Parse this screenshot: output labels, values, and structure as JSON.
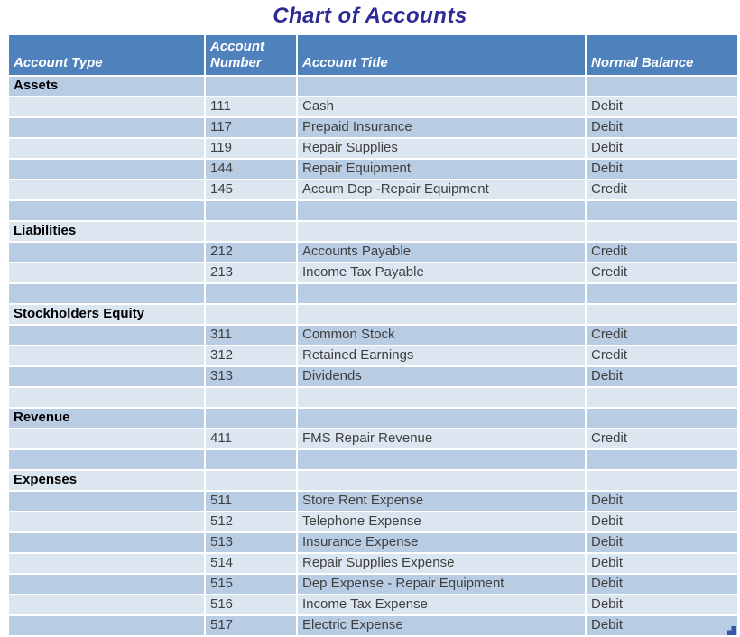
{
  "page": {
    "title": "Chart of Accounts"
  },
  "colors": {
    "header_bg": "#4F81BD",
    "row_medium": "#B8CCE4",
    "row_light": "#DCE6F1",
    "title_text": "#2D2C96",
    "header_text": "#FFFFFF",
    "body_text": "#3F3F3F",
    "section_text": "#000000",
    "gridline": "#FFFFFF",
    "resize_handle": "#3B55A5"
  },
  "table": {
    "columns": [
      "Account Type",
      "Account Number",
      "Account Title",
      "Normal Balance"
    ],
    "rows": [
      {
        "kind": "section",
        "account_type": "Assets"
      },
      {
        "kind": "data",
        "account_number": "111",
        "account_title": "Cash",
        "normal_balance": "Debit"
      },
      {
        "kind": "data",
        "account_number": "117",
        "account_title": "Prepaid Insurance",
        "normal_balance": "Debit"
      },
      {
        "kind": "data",
        "account_number": "119",
        "account_title": "Repair Supplies",
        "normal_balance": "Debit"
      },
      {
        "kind": "data",
        "account_number": "144",
        "account_title": "Repair Equipment",
        "normal_balance": "Debit"
      },
      {
        "kind": "data",
        "account_number": "145",
        "account_title": "Accum Dep -Repair Equipment",
        "normal_balance": "Credit"
      },
      {
        "kind": "empty"
      },
      {
        "kind": "section",
        "account_type": "Liabilities"
      },
      {
        "kind": "data",
        "account_number": "212",
        "account_title": "Accounts Payable",
        "normal_balance": "Credit"
      },
      {
        "kind": "data",
        "account_number": "213",
        "account_title": "Income Tax Payable",
        "normal_balance": "Credit"
      },
      {
        "kind": "empty"
      },
      {
        "kind": "section",
        "account_type": "Stockholders Equity"
      },
      {
        "kind": "data",
        "account_number": "311",
        "account_title": "Common Stock",
        "normal_balance": "Credit"
      },
      {
        "kind": "data",
        "account_number": "312",
        "account_title": "Retained Earnings",
        "normal_balance": "Credit"
      },
      {
        "kind": "data",
        "account_number": "313",
        "account_title": "Dividends",
        "normal_balance": "Debit"
      },
      {
        "kind": "empty"
      },
      {
        "kind": "section",
        "account_type": "Revenue"
      },
      {
        "kind": "data",
        "account_number": "411",
        "account_title": "FMS Repair Revenue",
        "normal_balance": "Credit"
      },
      {
        "kind": "empty"
      },
      {
        "kind": "section",
        "account_type": "Expenses"
      },
      {
        "kind": "data",
        "account_number": "511",
        "account_title": "Store Rent Expense",
        "normal_balance": "Debit"
      },
      {
        "kind": "data",
        "account_number": "512",
        "account_title": "Telephone Expense",
        "normal_balance": "Debit"
      },
      {
        "kind": "data",
        "account_number": "513",
        "account_title": "Insurance Expense",
        "normal_balance": "Debit"
      },
      {
        "kind": "data",
        "account_number": "514",
        "account_title": "Repair Supplies Expense",
        "normal_balance": "Debit"
      },
      {
        "kind": "data",
        "account_number": "515",
        "account_title": "Dep Expense - Repair Equipment",
        "normal_balance": "Debit"
      },
      {
        "kind": "data",
        "account_number": "516",
        "account_title": "Income Tax Expense",
        "normal_balance": "Debit"
      },
      {
        "kind": "data",
        "account_number": "517",
        "account_title": "Electric Expense",
        "normal_balance": "Debit"
      }
    ]
  }
}
